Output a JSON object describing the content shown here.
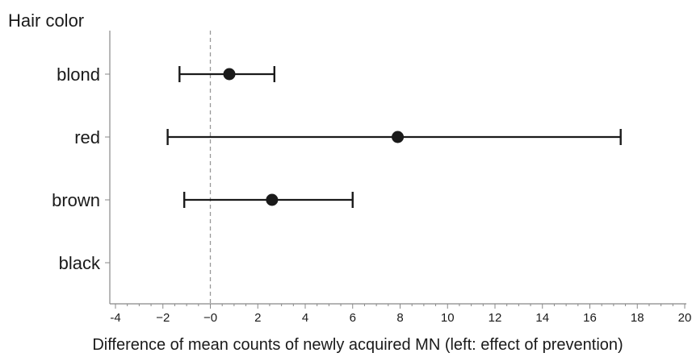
{
  "chart_data": {
    "type": "forest",
    "title": "Hair color",
    "xlabel": "Difference of mean counts of newly acquired MN (left: effect of prevention)",
    "ylabel": "",
    "xlim": [
      -4,
      20
    ],
    "x_ticks": [
      -4,
      -2,
      0,
      2,
      4,
      6,
      8,
      10,
      12,
      14,
      16,
      18,
      20
    ],
    "x_tick_labels": [
      "-4",
      "−2",
      "−0",
      "2",
      "4",
      "6",
      "8",
      "10",
      "12",
      "14",
      "16",
      "18",
      "20"
    ],
    "minor_tick_step": 0.5,
    "reference_line": 0,
    "grid": false,
    "categories": [
      "blond",
      "red",
      "brown",
      "black"
    ],
    "estimates": [
      0.8,
      7.9,
      2.6,
      null
    ],
    "ci_lower": [
      -1.3,
      -1.8,
      -1.1,
      null
    ],
    "ci_upper": [
      2.7,
      17.3,
      6.0,
      null
    ]
  },
  "colors": {
    "marker": "#1a1a1a",
    "axis": "#888888",
    "reference_line": "#999999"
  }
}
